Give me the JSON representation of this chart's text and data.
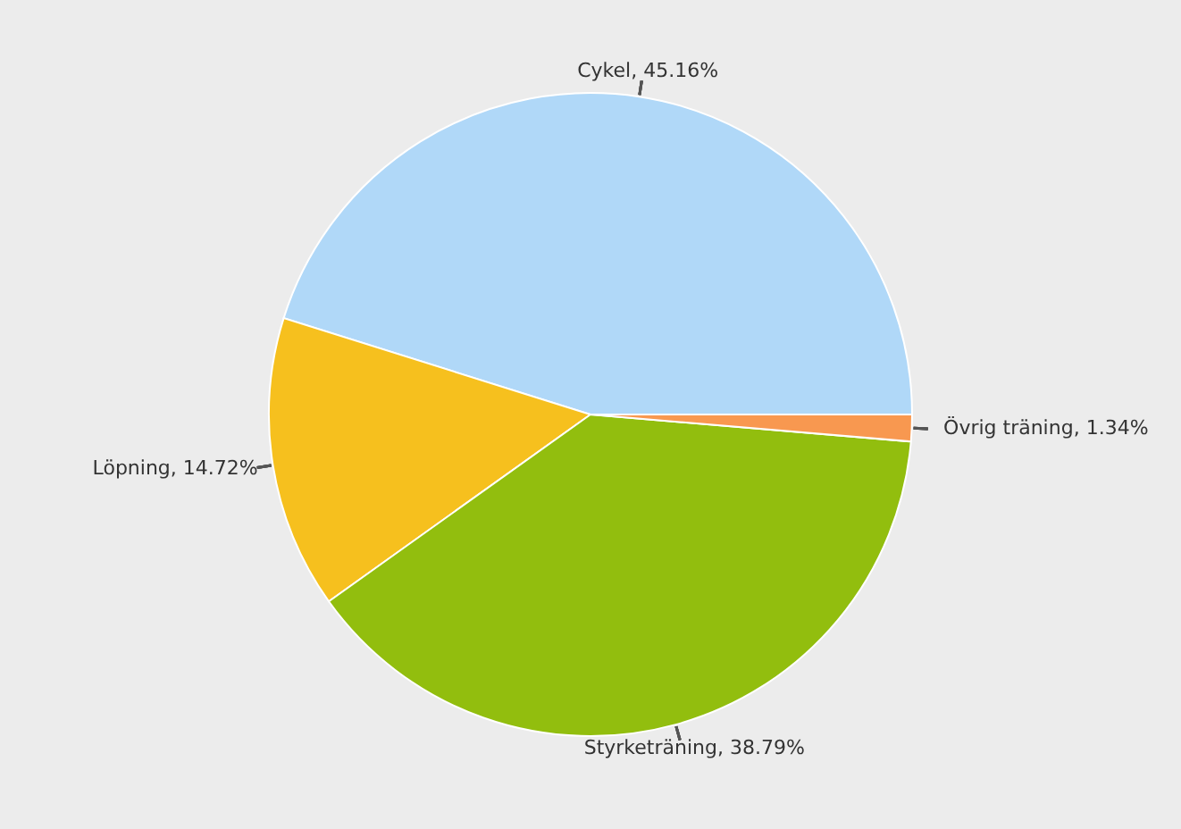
{
  "chart_data": {
    "type": "pie",
    "categories": [
      "Cykel",
      "Löpning",
      "Styrketräning",
      "Övrig träning"
    ],
    "values": [
      45.16,
      14.72,
      38.79,
      1.34
    ],
    "value_labels": [
      ", 45.16%",
      ", 14.72%",
      ", 38.79%",
      ", 1.34%"
    ],
    "colors": [
      "#b0d8f8",
      "#f6c01e",
      "#92be0e",
      "#f89850"
    ]
  }
}
